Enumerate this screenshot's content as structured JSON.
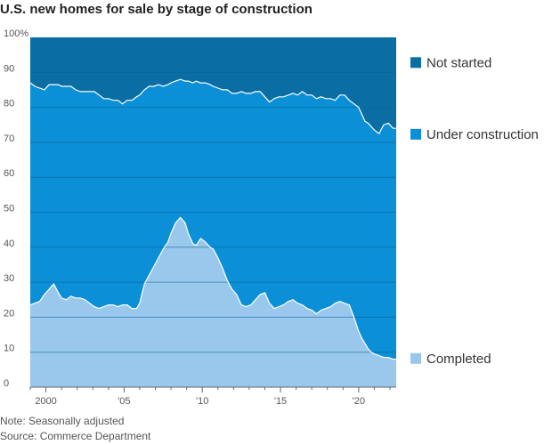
{
  "title": "U.S. new homes for sale by stage of construction",
  "footer": {
    "note": "Note: Seasonally adjusted",
    "source": "Source: Commerce Department"
  },
  "colors": {
    "not_started": "#0a6ea5",
    "under_construction": "#0b8fd6",
    "completed": "#99c8ec",
    "boundary": "#ffffff"
  },
  "chart_data": {
    "type": "area",
    "stacked": true,
    "title": "U.S. new homes for sale by stage of construction",
    "ylim": [
      0,
      100
    ],
    "xlim": [
      1999,
      2022.4
    ],
    "ytick_labels": [
      "100%",
      "90",
      "80",
      "70",
      "60",
      "50",
      "40",
      "30",
      "20",
      "10",
      "0"
    ],
    "xtick_labels": [
      "2000",
      "'05",
      "'10",
      "'15",
      "'20"
    ],
    "grid": "horizontal",
    "legend": [
      "Not started",
      "Under construction",
      "Completed"
    ],
    "legend_placement": "right",
    "series": [
      {
        "name": "Completed",
        "x": [
          1999.0,
          1999.3,
          1999.6,
          1999.9,
          2000.2,
          2000.5,
          2000.8,
          2001.0,
          2001.3,
          2001.6,
          2001.9,
          2002.2,
          2002.5,
          2002.8,
          2003.1,
          2003.4,
          2003.7,
          2004.0,
          2004.3,
          2004.6,
          2004.9,
          2005.2,
          2005.5,
          2005.8,
          2006.0,
          2006.3,
          2006.6,
          2006.9,
          2007.2,
          2007.5,
          2007.8,
          2008.0,
          2008.3,
          2008.6,
          2008.9,
          2009.1,
          2009.4,
          2009.6,
          2009.9,
          2010.2,
          2010.5,
          2010.7,
          2011.0,
          2011.3,
          2011.6,
          2011.9,
          2012.2,
          2012.5,
          2012.8,
          2013.1,
          2013.4,
          2013.7,
          2014.0,
          2014.3,
          2014.6,
          2014.9,
          2015.2,
          2015.5,
          2015.8,
          2016.1,
          2016.4,
          2016.7,
          2017.0,
          2017.3,
          2017.6,
          2017.9,
          2018.2,
          2018.5,
          2018.8,
          2019.1,
          2019.4,
          2019.7,
          2020.0,
          2020.2,
          2020.4,
          2020.6,
          2020.8,
          2021.0,
          2021.3,
          2021.6,
          2021.9,
          2022.2
        ],
        "values": [
          23.5,
          24.0,
          24.5,
          26.5,
          28.0,
          29.5,
          27.0,
          25.5,
          25.0,
          26.0,
          25.5,
          25.5,
          25.0,
          24.0,
          23.0,
          22.5,
          23.0,
          23.5,
          23.5,
          23.0,
          23.5,
          23.5,
          22.5,
          22.5,
          24.0,
          29.5,
          32.0,
          34.5,
          37.0,
          39.5,
          41.5,
          44.0,
          47.0,
          48.5,
          47.0,
          44.0,
          41.0,
          40.5,
          42.5,
          41.5,
          40.0,
          39.5,
          37.0,
          34.0,
          30.5,
          28.0,
          26.5,
          23.5,
          23.0,
          23.5,
          25.0,
          26.5,
          27.0,
          24.0,
          22.5,
          23.0,
          23.5,
          24.5,
          25.0,
          24.0,
          23.5,
          22.5,
          22.0,
          21.0,
          22.0,
          22.5,
          23.0,
          24.0,
          24.5,
          24.0,
          23.5,
          20.0,
          16.0,
          14.0,
          12.5,
          11.0,
          10.0,
          9.5,
          9.0,
          8.5,
          8.5,
          8.0
        ]
      },
      {
        "name": "Under construction",
        "x": [
          1999.0,
          1999.3,
          1999.6,
          1999.9,
          2000.2,
          2000.5,
          2000.8,
          2001.0,
          2001.3,
          2001.6,
          2001.9,
          2002.2,
          2002.5,
          2002.8,
          2003.1,
          2003.4,
          2003.7,
          2004.0,
          2004.3,
          2004.6,
          2004.9,
          2005.2,
          2005.5,
          2005.8,
          2006.0,
          2006.3,
          2006.6,
          2006.9,
          2007.2,
          2007.5,
          2007.8,
          2008.0,
          2008.3,
          2008.6,
          2008.9,
          2009.1,
          2009.4,
          2009.6,
          2009.9,
          2010.2,
          2010.5,
          2010.7,
          2011.0,
          2011.3,
          2011.6,
          2011.9,
          2012.2,
          2012.5,
          2012.8,
          2013.1,
          2013.4,
          2013.7,
          2014.0,
          2014.3,
          2014.6,
          2014.9,
          2015.2,
          2015.5,
          2015.8,
          2016.1,
          2016.4,
          2016.7,
          2017.0,
          2017.3,
          2017.6,
          2017.9,
          2018.2,
          2018.5,
          2018.8,
          2019.1,
          2019.4,
          2019.7,
          2020.0,
          2020.2,
          2020.4,
          2020.6,
          2020.8,
          2021.0,
          2021.3,
          2021.6,
          2021.9,
          2022.2
        ],
        "values": [
          63.5,
          62.0,
          61.0,
          58.5,
          58.5,
          57.0,
          59.5,
          60.5,
          61.0,
          60.0,
          59.5,
          59.0,
          59.5,
          60.5,
          61.5,
          61.0,
          59.5,
          59.0,
          58.5,
          59.0,
          57.5,
          58.5,
          59.5,
          60.5,
          59.5,
          55.5,
          54.0,
          51.5,
          49.5,
          46.5,
          45.0,
          43.0,
          40.5,
          39.5,
          40.5,
          43.5,
          46.0,
          47.0,
          44.5,
          45.5,
          46.5,
          46.5,
          48.5,
          51.0,
          54.5,
          56.0,
          57.5,
          61.0,
          61.0,
          60.5,
          59.5,
          58.0,
          56.0,
          57.5,
          60.0,
          60.0,
          59.5,
          59.0,
          59.0,
          59.5,
          61.0,
          61.0,
          61.5,
          61.5,
          61.0,
          60.0,
          59.5,
          58.0,
          59.0,
          59.5,
          58.5,
          61.0,
          64.0,
          64.0,
          63.5,
          64.5,
          64.5,
          64.0,
          63.5,
          66.5,
          67.0,
          66.0
        ]
      },
      {
        "name": "Not started",
        "x": [
          1999.0,
          1999.3,
          1999.6,
          1999.9,
          2000.2,
          2000.5,
          2000.8,
          2001.0,
          2001.3,
          2001.6,
          2001.9,
          2002.2,
          2002.5,
          2002.8,
          2003.1,
          2003.4,
          2003.7,
          2004.0,
          2004.3,
          2004.6,
          2004.9,
          2005.2,
          2005.5,
          2005.8,
          2006.0,
          2006.3,
          2006.6,
          2006.9,
          2007.2,
          2007.5,
          2007.8,
          2008.0,
          2008.3,
          2008.6,
          2008.9,
          2009.1,
          2009.4,
          2009.6,
          2009.9,
          2010.2,
          2010.5,
          2010.7,
          2011.0,
          2011.3,
          2011.6,
          2011.9,
          2012.2,
          2012.5,
          2012.8,
          2013.1,
          2013.4,
          2013.7,
          2014.0,
          2014.3,
          2014.6,
          2014.9,
          2015.2,
          2015.5,
          2015.8,
          2016.1,
          2016.4,
          2016.7,
          2017.0,
          2017.3,
          2017.6,
          2017.9,
          2018.2,
          2018.5,
          2018.8,
          2019.1,
          2019.4,
          2019.7,
          2020.0,
          2020.2,
          2020.4,
          2020.6,
          2020.8,
          2021.0,
          2021.3,
          2021.6,
          2021.9,
          2022.2
        ],
        "values": [
          13.0,
          14.0,
          14.5,
          15.0,
          13.5,
          13.5,
          13.5,
          14.0,
          14.0,
          14.0,
          15.0,
          15.5,
          15.5,
          15.5,
          15.5,
          16.5,
          17.5,
          17.5,
          18.0,
          18.0,
          19.0,
          18.0,
          18.0,
          17.0,
          16.5,
          15.0,
          14.0,
          14.0,
          13.5,
          14.0,
          13.5,
          13.0,
          12.5,
          12.0,
          12.5,
          12.5,
          13.0,
          12.5,
          13.0,
          13.0,
          13.5,
          14.0,
          14.5,
          15.0,
          15.0,
          16.0,
          16.0,
          15.5,
          16.0,
          16.0,
          15.5,
          15.5,
          17.0,
          18.5,
          17.5,
          17.0,
          17.0,
          16.5,
          16.0,
          16.5,
          15.5,
          16.5,
          16.5,
          17.5,
          17.0,
          17.5,
          17.5,
          18.0,
          16.5,
          16.5,
          18.0,
          19.0,
          20.0,
          22.0,
          24.0,
          24.5,
          25.5,
          26.5,
          27.5,
          25.0,
          24.5,
          26.0
        ]
      }
    ]
  }
}
